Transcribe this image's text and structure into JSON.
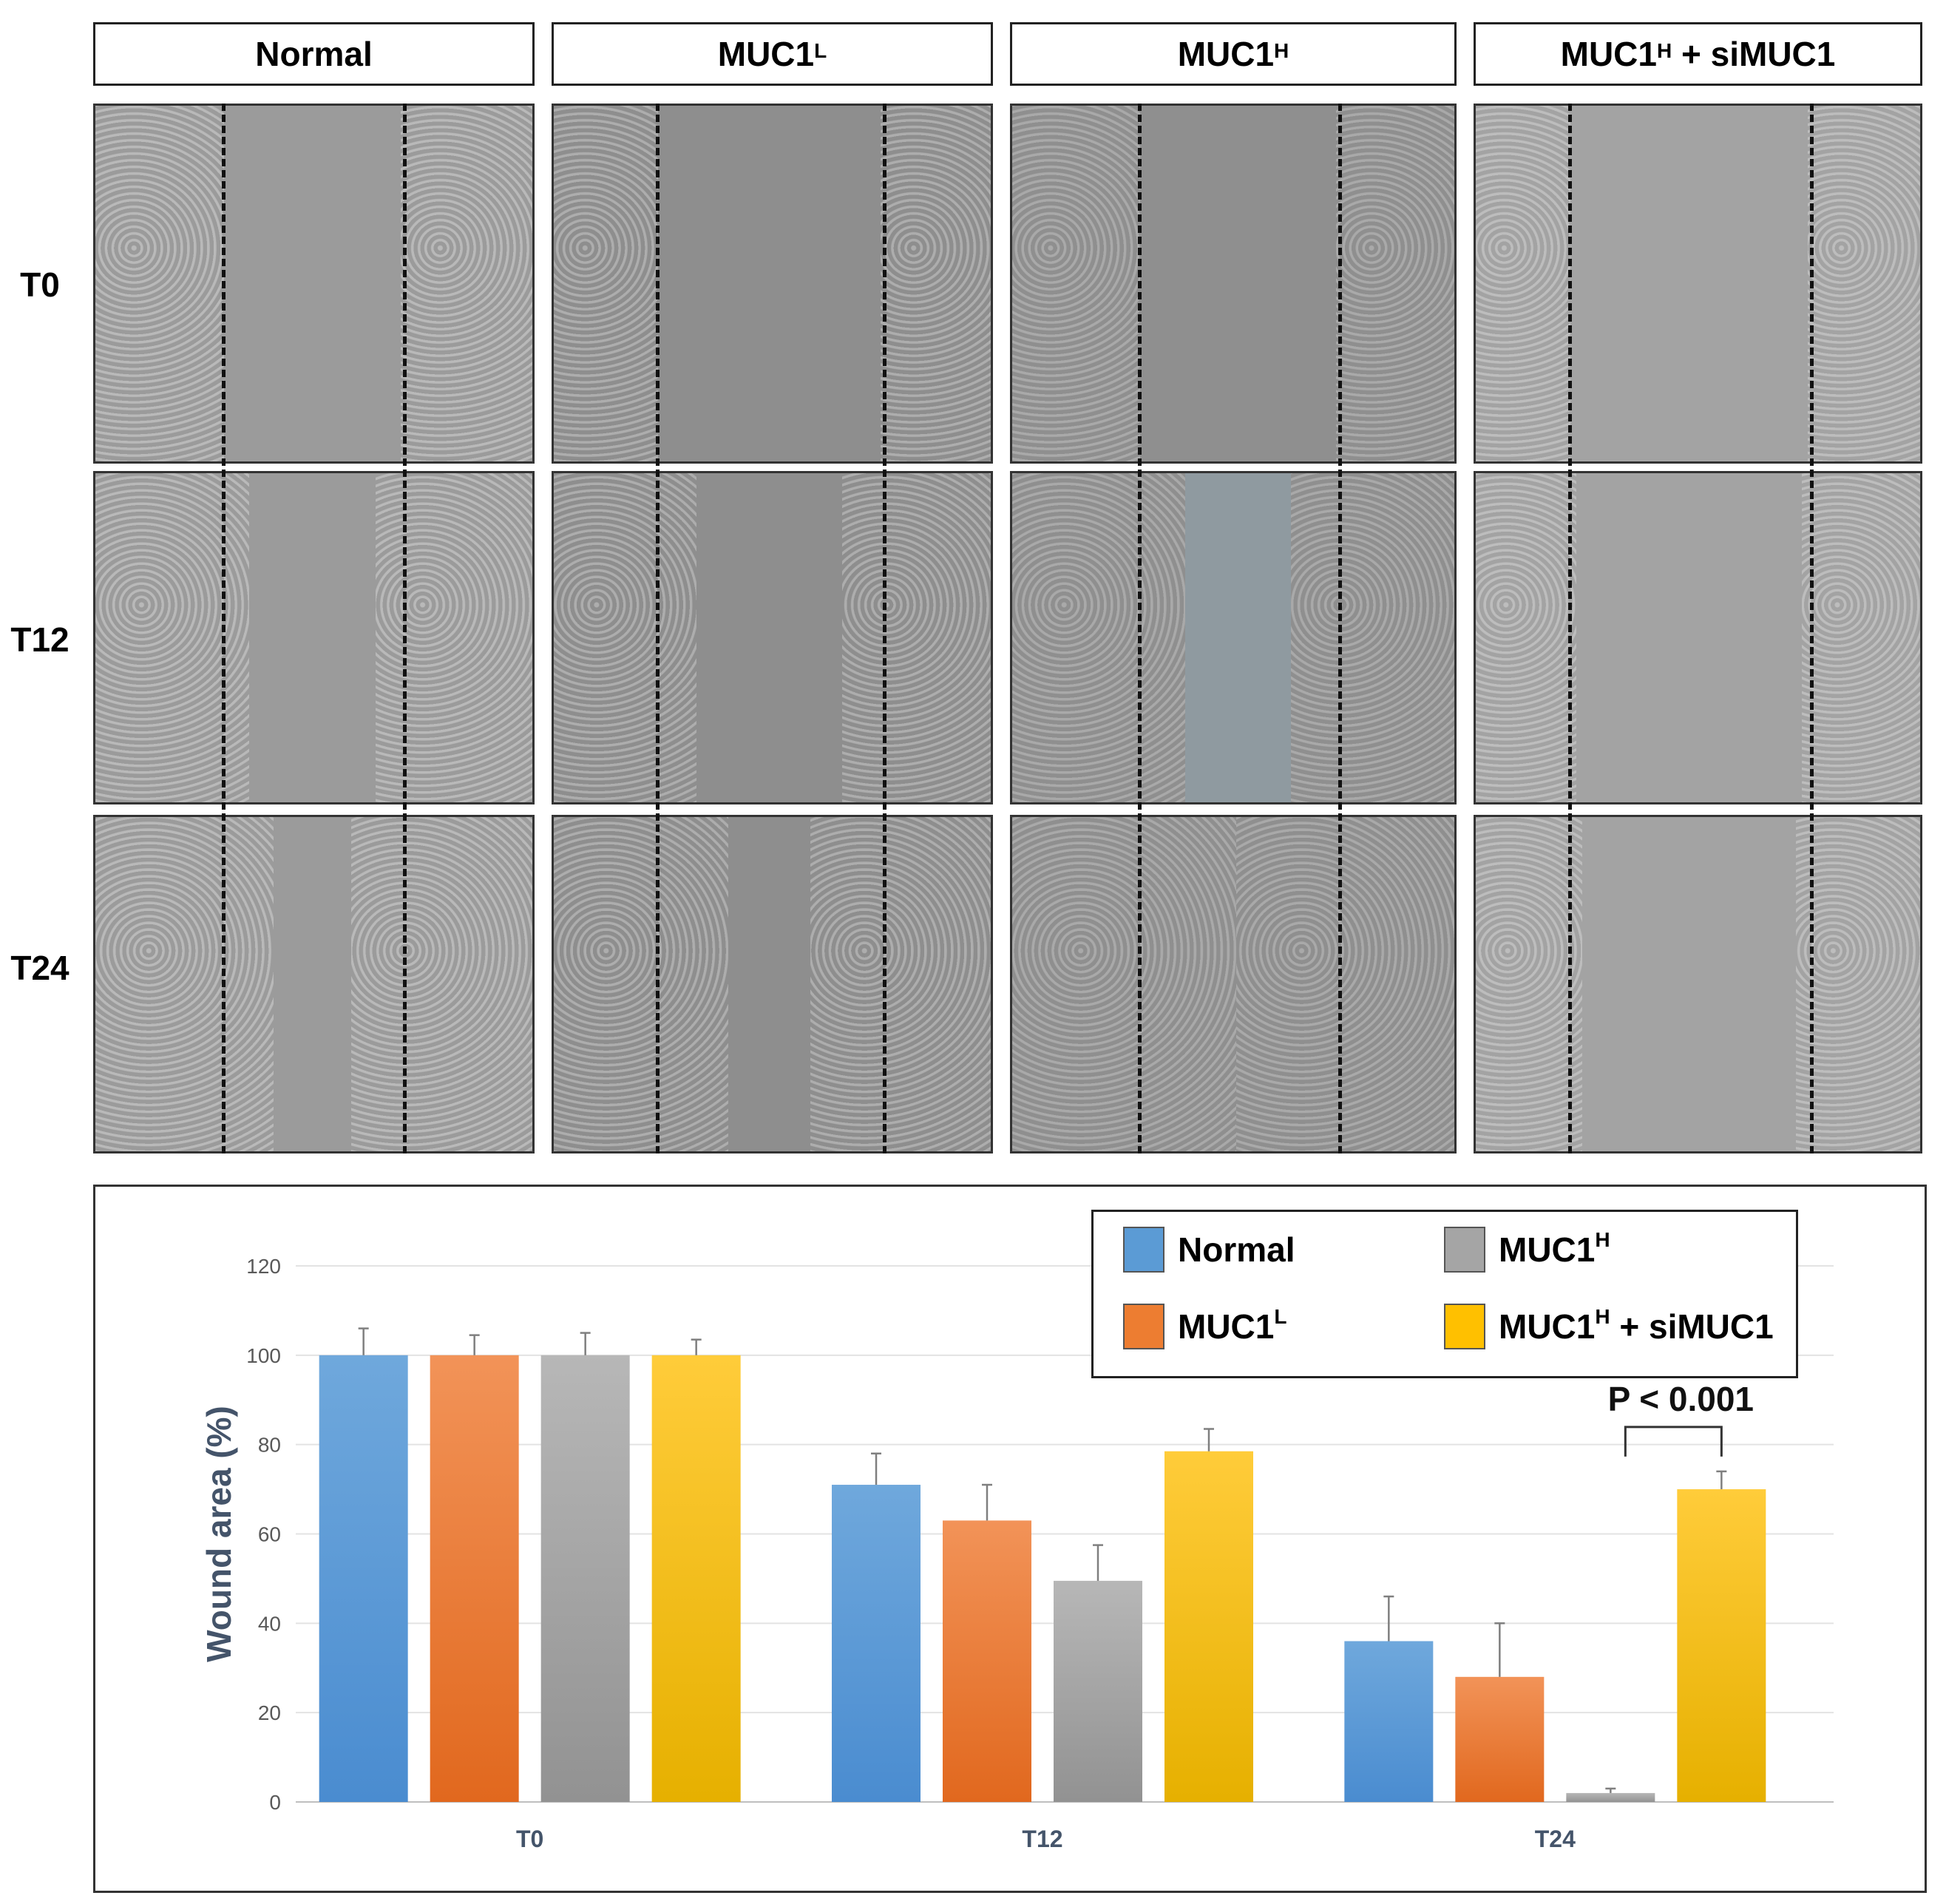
{
  "figure": {
    "column_headers": [
      {
        "base": "Normal",
        "sup": "",
        "suffix": ""
      },
      {
        "base": "MUC1",
        "sup": "L",
        "suffix": ""
      },
      {
        "base": "MUC1",
        "sup": "H",
        "suffix": ""
      },
      {
        "base": "MUC1",
        "sup": "H",
        "suffix": " + siMUC1"
      }
    ],
    "row_labels": [
      "T0",
      "T12",
      "T24"
    ]
  },
  "legend": [
    {
      "base": "Normal",
      "sup": "",
      "suffix": "",
      "color": "#5b9bd5"
    },
    {
      "base": "MUC1",
      "sup": "H",
      "suffix": "",
      "color": "#a5a5a5"
    },
    {
      "base": "MUC1",
      "sup": "L",
      "suffix": "",
      "color": "#ed7d31"
    },
    {
      "base": "MUC1",
      "sup": "H",
      "suffix": " + siMUC1",
      "color": "#ffc000"
    }
  ],
  "chart_data": {
    "type": "bar",
    "title": "",
    "xlabel": "",
    "ylabel": "Wound area (%)",
    "ylim": [
      0,
      120
    ],
    "yticks": [
      0,
      20,
      40,
      60,
      80,
      100,
      120
    ],
    "categories": [
      "T0",
      "T12",
      "T24"
    ],
    "series": [
      {
        "name": "Normal",
        "color": "#5b9bd5",
        "values": [
          100,
          71,
          36
        ],
        "errors": [
          6,
          7,
          10
        ]
      },
      {
        "name": "MUC1L",
        "color": "#ed7d31",
        "values": [
          100,
          63,
          28
        ],
        "errors": [
          4.5,
          8,
          12
        ]
      },
      {
        "name": "MUC1H",
        "color": "#a5a5a5",
        "values": [
          100,
          49.5,
          2
        ],
        "errors": [
          5,
          8,
          1
        ]
      },
      {
        "name": "MUC1H + siMUC1",
        "color": "#ffc000",
        "values": [
          100,
          78.5,
          70
        ],
        "errors": [
          3.5,
          5,
          4
        ]
      }
    ],
    "grid": true,
    "legend_position": "top-right",
    "annotation": {
      "text": "P < 0.001",
      "category": "T24",
      "from_series": 2,
      "to_series": 3
    }
  }
}
